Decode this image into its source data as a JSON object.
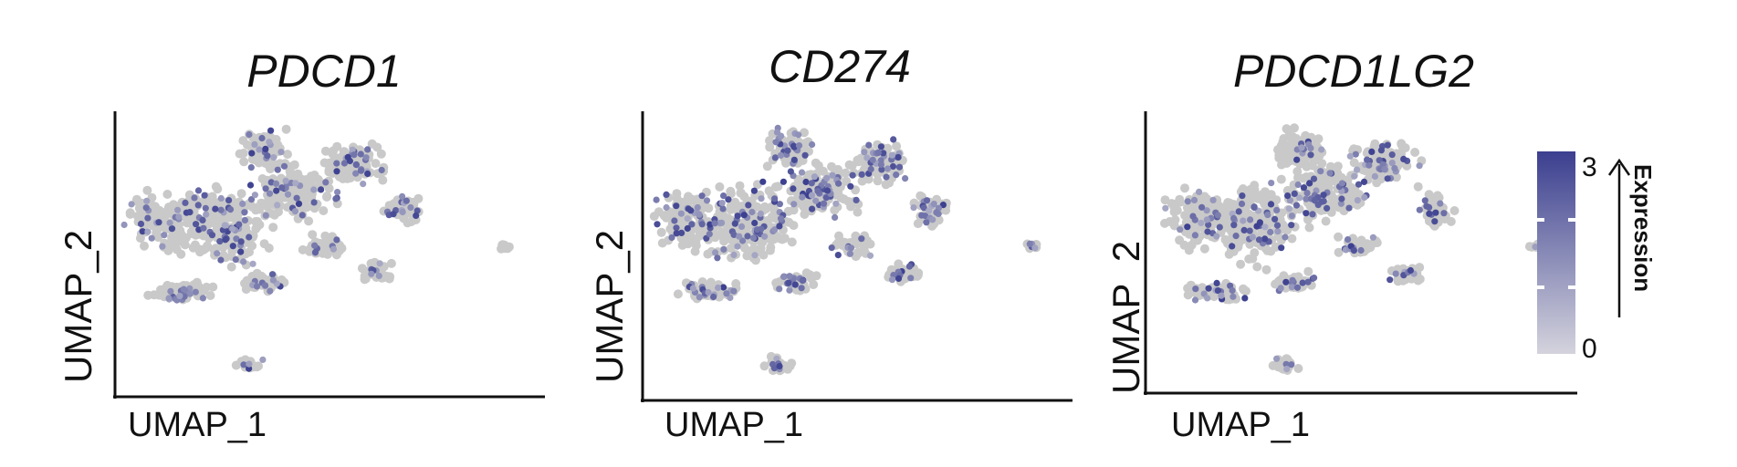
{
  "chart_data": [
    {
      "type": "scatter",
      "title": "PDCD1",
      "xlabel": "UMAP_1",
      "ylabel": "UMAP_2",
      "expression_max": 3,
      "expression_min": 0
    },
    {
      "type": "scatter",
      "title": "CD274",
      "xlabel": "UMAP_1",
      "ylabel": "UMAP_2",
      "expression_max": 3,
      "expression_min": 0
    },
    {
      "type": "scatter",
      "title": "PDCD1LG2",
      "xlabel": "UMAP_1",
      "ylabel": "UMAP_2",
      "expression_max": 3,
      "expression_min": 0
    }
  ],
  "legend": {
    "title": "Expression",
    "max_label": "3",
    "min_label": "0",
    "color_low": "#cfcfd8",
    "color_high": "#3b3f8f"
  },
  "colors": {
    "background_cell": "#c9c9c9",
    "axis": "#111111"
  }
}
